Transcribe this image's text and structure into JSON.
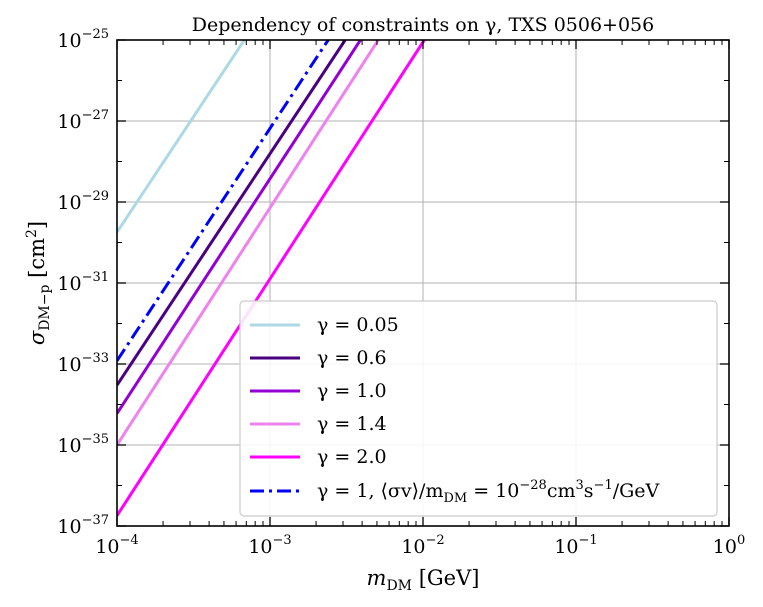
{
  "chart_data": {
    "type": "line",
    "title": "Dependency of constraints on γ, TXS 0506+056",
    "xlabel": "m_DM [GeV]",
    "ylabel": "σ_DM−p [cm²]",
    "xscale": "log",
    "yscale": "log",
    "xlim": [
      0.0001,
      1
    ],
    "ylim": [
      1e-37,
      1e-25
    ],
    "grid": true,
    "legend_location": "lower-right",
    "x_ticks": [
      {
        "value": 0.0001,
        "base": "10",
        "exp": "−4"
      },
      {
        "value": 0.001,
        "base": "10",
        "exp": "−3"
      },
      {
        "value": 0.01,
        "base": "10",
        "exp": "−2"
      },
      {
        "value": 0.1,
        "base": "10",
        "exp": "−1"
      },
      {
        "value": 1,
        "base": "10",
        "exp": "0"
      }
    ],
    "y_ticks": [
      {
        "value": 1e-25,
        "base": "10",
        "exp": "−25"
      },
      {
        "value": 1e-27,
        "base": "10",
        "exp": "−27"
      },
      {
        "value": 1e-29,
        "base": "10",
        "exp": "−29"
      },
      {
        "value": 1e-31,
        "base": "10",
        "exp": "−31"
      },
      {
        "value": 1e-33,
        "base": "10",
        "exp": "−33"
      },
      {
        "value": 1e-35,
        "base": "10",
        "exp": "−35"
      },
      {
        "value": 1e-37,
        "base": "10",
        "exp": "−37"
      }
    ],
    "series": [
      {
        "name": "γ = 0.05",
        "color": "#add8e6",
        "dash": "solid",
        "x": [
          0.0001,
          0.00068
        ],
        "y": [
          1.8e-30,
          1e-25
        ]
      },
      {
        "name": "γ = 0.6",
        "color": "#4b0082",
        "dash": "solid",
        "x": [
          0.0001,
          0.0031
        ],
        "y": [
          3e-34,
          1e-25
        ]
      },
      {
        "name": "γ = 1.0",
        "color": "#9400d3",
        "dash": "solid",
        "x": [
          0.0001,
          0.0039
        ],
        "y": [
          6e-35,
          1e-25
        ]
      },
      {
        "name": "γ = 1.4",
        "color": "#ee82ee",
        "dash": "solid",
        "x": [
          0.0001,
          0.0051
        ],
        "y": [
          1e-35,
          1e-25
        ]
      },
      {
        "name": "γ = 2.0",
        "color": "#ff00ff",
        "dash": "solid",
        "x": [
          0.0001,
          0.0102
        ],
        "y": [
          1.8e-37,
          1e-25
        ]
      },
      {
        "name": "γ = 1, ⟨σv⟩/m_DM = 10⁻²⁸cm³s⁻¹/GeV",
        "color": "#0000ff",
        "dash": "dashdot",
        "x": [
          0.0001,
          0.0024
        ],
        "y": [
          1.2e-33,
          1e-25
        ]
      }
    ]
  },
  "legend_parts": [
    {
      "main": "γ = 0.05"
    },
    {
      "main": "γ = 0.6"
    },
    {
      "main": "γ = 1.0"
    },
    {
      "main": "γ = 1.4"
    },
    {
      "main": "γ = 2.0"
    },
    {
      "main": "γ = 1, ⟨σv⟩/m",
      "sub1": "DM",
      "mid": " = 10",
      "sup1": "−28",
      "mid2": "cm",
      "sup2": "3",
      "mid3": "s",
      "sup3": "−1",
      "end": "/GeV"
    }
  ],
  "labels": {
    "xlabel_main": "m",
    "xlabel_sub": "DM",
    "xlabel_unit": " [GeV]",
    "ylabel_main": "σ",
    "ylabel_sub": "DM−p",
    "ylabel_unit": " [cm",
    "ylabel_sup": "2",
    "ylabel_close": "]"
  }
}
